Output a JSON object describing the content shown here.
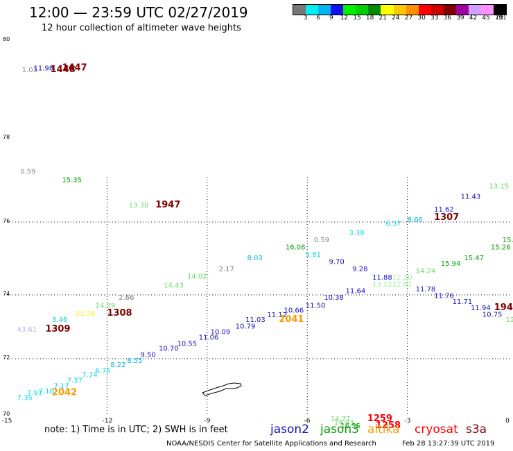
{
  "header": {
    "title": "12:00 — 23:59 UTC 02/27/2019",
    "subtitle": "12 hour collection of altimeter wave heights"
  },
  "colorscale": {
    "labels": [
      "3",
      "6",
      "9",
      "12",
      "15",
      "18",
      "21",
      "24",
      "27",
      "30",
      "33",
      "36",
      "39",
      "42",
      "45",
      "70"
    ],
    "unit": "(ft)",
    "colors": [
      "#777777",
      "#00f0f0",
      "#00b4f0",
      "#1010f0",
      "#00f000",
      "#00d000",
      "#008c00",
      "#ffff00",
      "#ffc800",
      "#ff9000",
      "#ff0000",
      "#d00000",
      "#800000",
      "#a000a0",
      "#d0a0ff",
      "#ff90ff",
      "#000000"
    ]
  },
  "map": {
    "lat_ticks": [
      "80",
      "78",
      "76",
      "74",
      "72",
      "70"
    ],
    "lon_ticks": [
      "-15",
      "-12",
      "-9",
      "-6",
      "-3",
      "0"
    ],
    "lon_range": [
      -15,
      0
    ],
    "lat_range": [
      70,
      80
    ]
  },
  "satellites": [
    {
      "name": "jason2",
      "color": "#1010c8"
    },
    {
      "name": "jason3",
      "color": "#00a000"
    },
    {
      "name": "altika",
      "color": "#ff9900"
    },
    {
      "name": "cryosat",
      "color": "#ff0000"
    },
    {
      "name": "s3a",
      "color": "#800000"
    }
  ],
  "footer": {
    "note": "note:  1) Time is in UTC;  2) SWH is in feet",
    "credit": "NOAA/NESDIS Center for Satellite Applications and Research",
    "timestamp": "Feb 28 13:27:39 UTC 2019"
  },
  "observations": [
    {
      "text": "1.03",
      "lon": -14.55,
      "lat": 79.35,
      "color": "#888888"
    },
    {
      "text": "11.98",
      "lon": -14.2,
      "lat": 79.38,
      "color": "#1010c8"
    },
    {
      "text": "1448",
      "lon": -13.7,
      "lat": 79.35,
      "color": "#800000",
      "bold": true
    },
    {
      "text": "1447",
      "lon": -13.35,
      "lat": 79.38,
      "color": "#800000",
      "bold": true
    },
    {
      "text": "0.59",
      "lon": -14.6,
      "lat": 77.15,
      "color": "#888888"
    },
    {
      "text": "15.35",
      "lon": -13.35,
      "lat": 76.95,
      "color": "#00a000"
    },
    {
      "text": "13.30",
      "lon": -11.35,
      "lat": 76.35,
      "color": "#66dd66"
    },
    {
      "text": "1947",
      "lon": -10.55,
      "lat": 76.35,
      "color": "#800000",
      "bold": true
    },
    {
      "text": "15.",
      "lon": -0.15,
      "lat": 75.45,
      "color": "#00a000"
    },
    {
      "text": "15.26",
      "lon": -0.5,
      "lat": 75.25,
      "color": "#00a000"
    },
    {
      "text": "15.47",
      "lon": -1.3,
      "lat": 74.95,
      "color": "#00a000"
    },
    {
      "text": "15.94",
      "lon": -2.0,
      "lat": 74.8,
      "color": "#00a000"
    },
    {
      "text": "14.24",
      "lon": -2.75,
      "lat": 74.6,
      "color": "#66dd66"
    },
    {
      "text": "13.15",
      "lon": -0.55,
      "lat": 76.8,
      "color": "#66dd66"
    },
    {
      "text": "11.43",
      "lon": -1.4,
      "lat": 76.55,
      "color": "#1010c8"
    },
    {
      "text": "11.62",
      "lon": -2.2,
      "lat": 76.25,
      "color": "#1010c8"
    },
    {
      "text": "1307",
      "lon": -2.2,
      "lat": 76.05,
      "color": "#800000",
      "bold": true
    },
    {
      "text": "8.66",
      "lon": -3.0,
      "lat": 76.0,
      "color": "#00b4f0"
    },
    {
      "text": "6.37",
      "lon": -3.65,
      "lat": 75.9,
      "color": "#00d4e8"
    },
    {
      "text": "3.38",
      "lon": -4.75,
      "lat": 75.65,
      "color": "#00d4e8"
    },
    {
      "text": "0.59",
      "lon": -5.8,
      "lat": 75.45,
      "color": "#888888"
    },
    {
      "text": "16.08",
      "lon": -6.65,
      "lat": 75.25,
      "color": "#00a000"
    },
    {
      "text": "5.81",
      "lon": -6.05,
      "lat": 75.05,
      "color": "#00d4e8"
    },
    {
      "text": "8.03",
      "lon": -7.8,
      "lat": 74.95,
      "color": "#00b4f0"
    },
    {
      "text": "9.70",
      "lon": -5.35,
      "lat": 74.85,
      "color": "#1010c8"
    },
    {
      "text": "9.28",
      "lon": -4.65,
      "lat": 74.65,
      "color": "#1010c8"
    },
    {
      "text": "2.17",
      "lon": -8.65,
      "lat": 74.65,
      "color": "#777777"
    },
    {
      "text": "14.02",
      "lon": -9.6,
      "lat": 74.45,
      "color": "#66dd66"
    },
    {
      "text": "11.88",
      "lon": -4.05,
      "lat": 74.42,
      "color": "#1010c8"
    },
    {
      "text": "12.30",
      "lon": -3.45,
      "lat": 74.42,
      "color": "#99ee99"
    },
    {
      "text": "13.12",
      "lon": -4.05,
      "lat": 74.23,
      "color": "#99ee99"
    },
    {
      "text": "12.81",
      "lon": -3.45,
      "lat": 74.23,
      "color": "#99ee99"
    },
    {
      "text": "14.43",
      "lon": -10.3,
      "lat": 74.2,
      "color": "#66dd66"
    },
    {
      "text": "11.64",
      "lon": -4.85,
      "lat": 74.05,
      "color": "#1010c8"
    },
    {
      "text": "10.38",
      "lon": -5.5,
      "lat": 73.85,
      "color": "#1010c8"
    },
    {
      "text": "11.78",
      "lon": -2.75,
      "lat": 74.1,
      "color": "#1010c8"
    },
    {
      "text": "11.76",
      "lon": -2.2,
      "lat": 73.9,
      "color": "#1010c8"
    },
    {
      "text": "11.71",
      "lon": -1.65,
      "lat": 73.72,
      "color": "#1010c8"
    },
    {
      "text": "11.94",
      "lon": -1.1,
      "lat": 73.52,
      "color": "#1010c8"
    },
    {
      "text": "194",
      "lon": -0.4,
      "lat": 73.52,
      "color": "#800000",
      "bold": true
    },
    {
      "text": "10.75",
      "lon": -0.75,
      "lat": 73.32,
      "color": "#1010c8"
    },
    {
      "text": "12",
      "lon": -0.05,
      "lat": 73.15,
      "color": "#66dd66"
    },
    {
      "text": "2.66",
      "lon": -11.65,
      "lat": 73.85,
      "color": "#777777"
    },
    {
      "text": "14.39",
      "lon": -12.35,
      "lat": 73.6,
      "color": "#66dd66"
    },
    {
      "text": "21.28",
      "lon": -12.95,
      "lat": 73.35,
      "color": "#ffee00"
    },
    {
      "text": "1308",
      "lon": -12.0,
      "lat": 73.35,
      "color": "#800000",
      "bold": true
    },
    {
      "text": "3.46",
      "lon": -13.65,
      "lat": 73.15,
      "color": "#00d4e8"
    },
    {
      "text": "43.61",
      "lon": -14.7,
      "lat": 72.85,
      "color": "#c0a8ff"
    },
    {
      "text": "1309",
      "lon": -13.85,
      "lat": 72.85,
      "color": "#800000",
      "bold": true
    },
    {
      "text": "11.50",
      "lon": -6.05,
      "lat": 73.6,
      "color": "#1010c8"
    },
    {
      "text": "10.66",
      "lon": -6.7,
      "lat": 73.45,
      "color": "#1010c8"
    },
    {
      "text": "11.12",
      "lon": -7.2,
      "lat": 73.3,
      "color": "#1010c8"
    },
    {
      "text": "11.03",
      "lon": -7.85,
      "lat": 73.15,
      "color": "#1010c8"
    },
    {
      "text": "2041",
      "lon": -6.85,
      "lat": 73.15,
      "color": "#ff9900",
      "bold": true
    },
    {
      "text": "10.79",
      "lon": -8.15,
      "lat": 72.95,
      "color": "#1010c8"
    },
    {
      "text": "10.09",
      "lon": -8.9,
      "lat": 72.77,
      "color": "#1010c8"
    },
    {
      "text": "11.06",
      "lon": -9.25,
      "lat": 72.6,
      "color": "#1010c8"
    },
    {
      "text": "10.55",
      "lon": -9.9,
      "lat": 72.4,
      "color": "#1010c8"
    },
    {
      "text": "10.70",
      "lon": -10.45,
      "lat": 72.25,
      "color": "#1010c8"
    },
    {
      "text": "9.50",
      "lon": -11.0,
      "lat": 72.05,
      "color": "#1010c8"
    },
    {
      "text": "8.55",
      "lon": -11.4,
      "lat": 71.85,
      "color": "#00b4f0"
    },
    {
      "text": "8.22",
      "lon": -11.9,
      "lat": 71.7,
      "color": "#00b4f0"
    },
    {
      "text": "6.75",
      "lon": -12.35,
      "lat": 71.5,
      "color": "#00d4e8"
    },
    {
      "text": "7.74",
      "lon": -12.75,
      "lat": 71.35,
      "color": "#00d4e8"
    },
    {
      "text": "7.37",
      "lon": -13.2,
      "lat": 71.15,
      "color": "#00d4e8"
    },
    {
      "text": "7.17",
      "lon": -13.6,
      "lat": 70.95,
      "color": "#00d4e8"
    },
    {
      "text": "7.18",
      "lon": -14.05,
      "lat": 70.77,
      "color": "#00d4e8"
    },
    {
      "text": "7.91",
      "lon": -14.4,
      "lat": 70.7,
      "color": "#00d4e8"
    },
    {
      "text": "2042",
      "lon": -13.65,
      "lat": 70.7,
      "color": "#ff9900",
      "bold": true
    },
    {
      "text": "7.35",
      "lon": -14.7,
      "lat": 70.53,
      "color": "#00d4e8"
    },
    {
      "text": "14.77",
      "lon": -5.3,
      "lat": 69.77,
      "color": "#66dd66"
    },
    {
      "text": "1259",
      "lon": -4.2,
      "lat": 69.77,
      "color": "#ff0000",
      "bold": true
    },
    {
      "text": "14.03",
      "lon": -5.2,
      "lat": 69.65,
      "color": "#66dd66"
    },
    {
      "text": "16.55",
      "lon": -5.0,
      "lat": 69.53,
      "color": "#00a000"
    },
    {
      "text": "1258",
      "lon": -3.95,
      "lat": 69.53,
      "color": "#ff0000",
      "bold": true
    }
  ]
}
